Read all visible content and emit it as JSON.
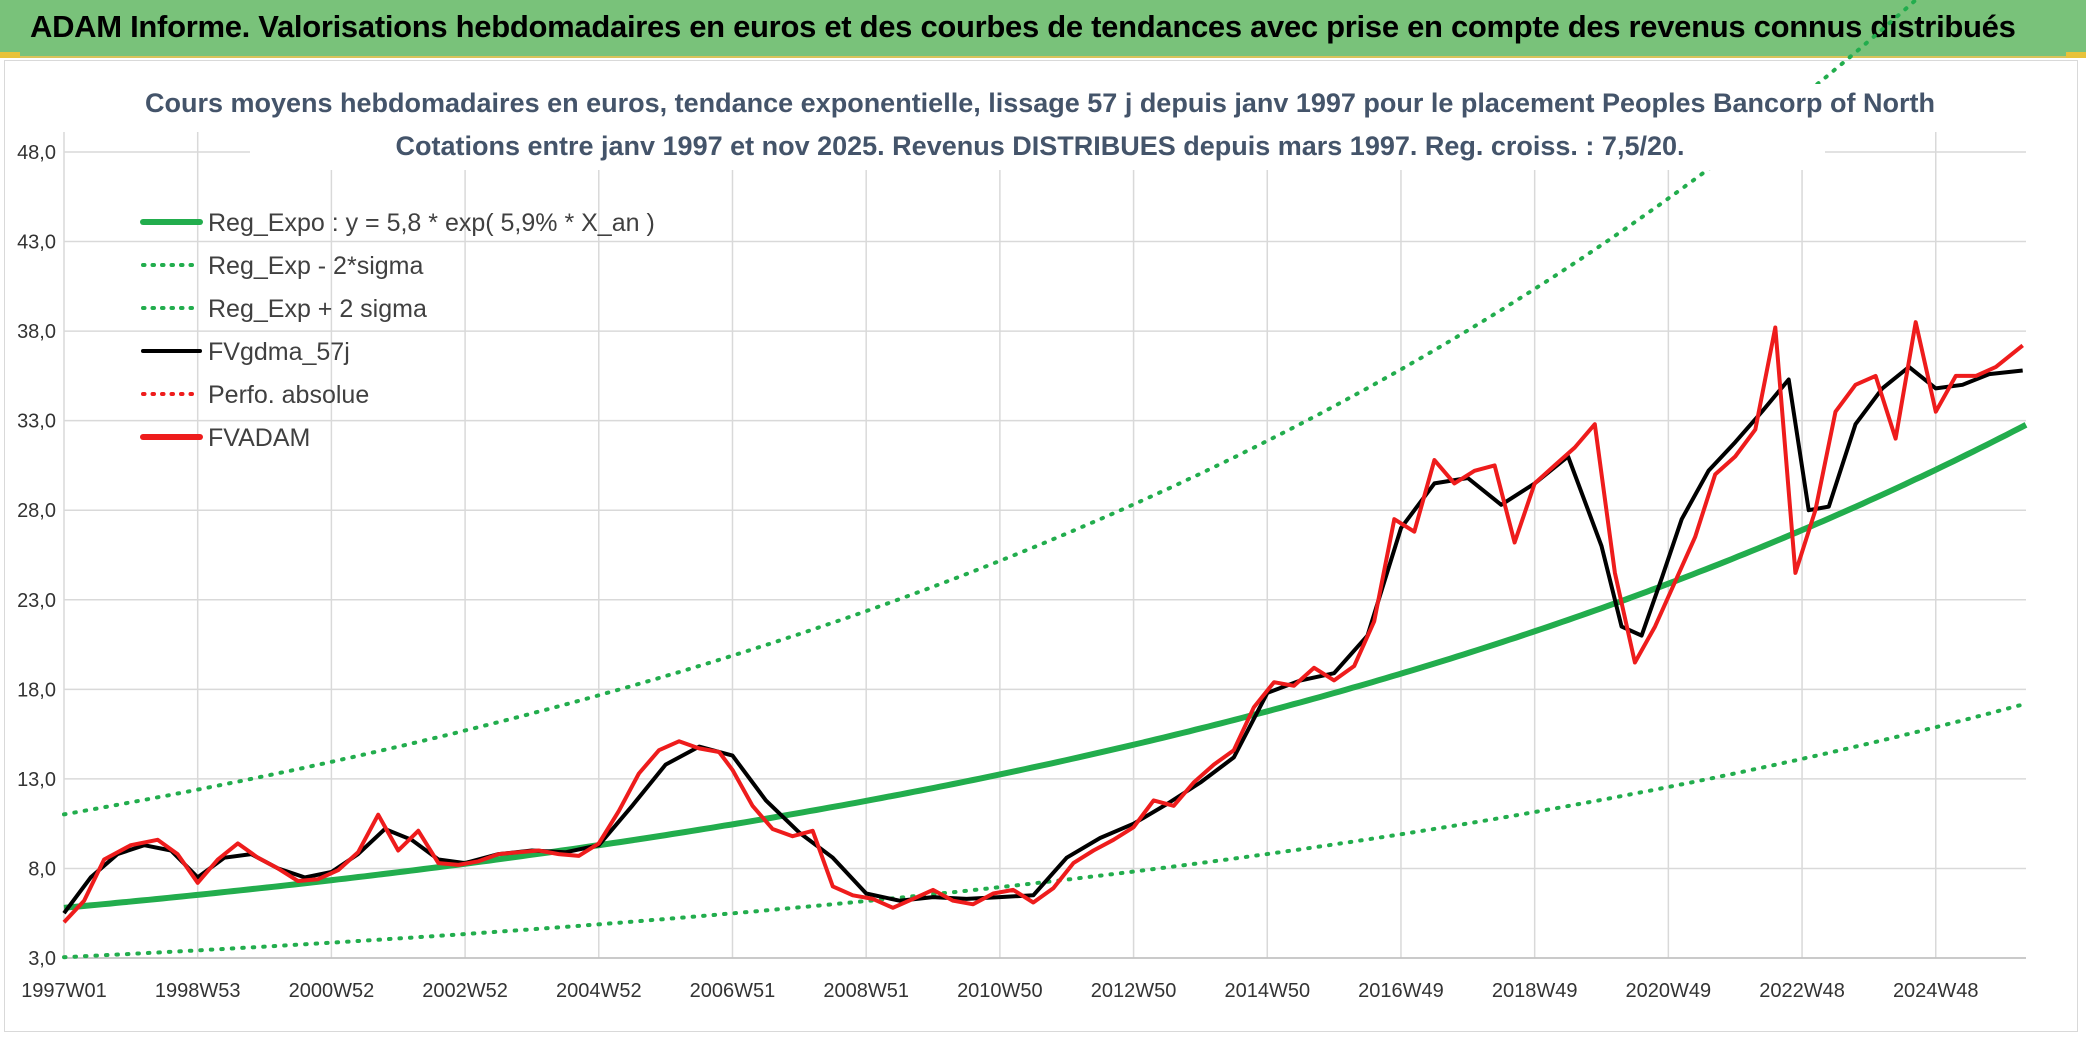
{
  "header": {
    "title": "ADAM Informe. Valorisations hebdomadaires en euros et des courbes de tendances avec prise en compte des revenus connus distribués"
  },
  "colors": {
    "header_bg": "#79c27a",
    "trend": "#22ad4d",
    "price": "#ee1c1c",
    "smooth": "#000000"
  },
  "chart_data": {
    "type": "line",
    "title_line1": "Cours moyens hebdomadaires en euros, tendance exponentielle, lissage 57 j depuis janv 1997 pour le placement Peoples Bancorp of North",
    "title_line2": "Cotations entre janv 1997 et nov 2025. Revenus DISTRIBUES depuis mars 1997. Reg. croiss. : 7,5/20.",
    "x_tick_labels": [
      "1997W01",
      "1998W53",
      "2000W52",
      "2002W52",
      "2004W52",
      "2006W51",
      "2008W51",
      "2010W50",
      "2012W50",
      "2014W50",
      "2016W49",
      "2018W49",
      "2020W49",
      "2022W48",
      "2024W48"
    ],
    "x_tick_years": [
      1997.0,
      1999.0,
      2001.0,
      2003.0,
      2005.0,
      2007.0,
      2009.0,
      2011.0,
      2013.0,
      2015.0,
      2017.0,
      2019.0,
      2021.0,
      2023.0,
      2025.0
    ],
    "xlim": [
      1997.0,
      2026.35
    ],
    "y_tick_labels": [
      "3,0",
      "8,0",
      "13,0",
      "18,0",
      "23,0",
      "28,0",
      "33,0",
      "38,0",
      "43,0",
      "48,0"
    ],
    "ylim": [
      3,
      48
    ],
    "legend": [
      {
        "label": "Reg_Expo : y = 5,8 * exp( 5,9% *  X_an )",
        "style": "solid-thick",
        "color": "#22ad4d"
      },
      {
        "label": "Reg_Exp - 2*sigma",
        "style": "dotted",
        "color": "#22ad4d"
      },
      {
        "label": "Reg_Exp + 2 sigma",
        "style": "dotted",
        "color": "#22ad4d"
      },
      {
        "label": "FVgdma_57j",
        "style": "solid",
        "color": "#000000"
      },
      {
        "label": "Perfo. absolue",
        "style": "dotted",
        "color": "#ee1c1c"
      },
      {
        "label": "FVADAM",
        "style": "solid-thick",
        "color": "#ee1c1c"
      }
    ],
    "trend": {
      "a": 5.8,
      "rate": 0.059,
      "lower_factor": 0.525,
      "upper_factor": 1.9
    },
    "series_price": {
      "name": "FVADAM",
      "x": [
        1997.0,
        1997.3,
        1997.6,
        1998.0,
        1998.4,
        1998.7,
        1999.0,
        1999.3,
        1999.6,
        1999.9,
        2000.2,
        2000.5,
        2000.8,
        2001.1,
        2001.4,
        2001.7,
        2002.0,
        2002.3,
        2002.6,
        2002.9,
        2003.2,
        2003.5,
        2003.8,
        2004.1,
        2004.4,
        2004.7,
        2005.0,
        2005.3,
        2005.6,
        2005.9,
        2006.2,
        2006.5,
        2006.8,
        2007.0,
        2007.3,
        2007.6,
        2007.9,
        2008.2,
        2008.5,
        2008.8,
        2009.1,
        2009.4,
        2009.7,
        2010.0,
        2010.3,
        2010.6,
        2010.9,
        2011.2,
        2011.5,
        2011.8,
        2012.1,
        2012.4,
        2012.7,
        2013.0,
        2013.3,
        2013.6,
        2013.9,
        2014.2,
        2014.5,
        2014.8,
        2015.1,
        2015.4,
        2015.7,
        2016.0,
        2016.3,
        2016.6,
        2016.9,
        2017.2,
        2017.5,
        2017.8,
        2018.1,
        2018.4,
        2018.7,
        2019.0,
        2019.3,
        2019.6,
        2019.9,
        2020.2,
        2020.5,
        2020.8,
        2021.1,
        2021.4,
        2021.7,
        2022.0,
        2022.3,
        2022.6,
        2022.9,
        2023.2,
        2023.5,
        2023.8,
        2024.1,
        2024.4,
        2024.7,
        2025.0,
        2025.3,
        2025.6,
        2025.9,
        2026.3
      ],
      "values": [
        5.0,
        6.2,
        8.5,
        9.3,
        9.6,
        8.8,
        7.2,
        8.5,
        9.4,
        8.6,
        8.0,
        7.3,
        7.4,
        7.9,
        8.9,
        11.0,
        9.0,
        10.1,
        8.3,
        8.2,
        8.4,
        8.8,
        8.9,
        9.0,
        8.8,
        8.7,
        9.4,
        11.2,
        13.3,
        14.6,
        15.1,
        14.7,
        14.5,
        13.5,
        11.5,
        10.2,
        9.8,
        10.1,
        7.0,
        6.5,
        6.3,
        5.8,
        6.3,
        6.8,
        6.2,
        6.0,
        6.6,
        6.8,
        6.1,
        6.9,
        8.3,
        9.0,
        9.6,
        10.3,
        11.8,
        11.5,
        12.8,
        13.8,
        14.6,
        17.0,
        18.4,
        18.2,
        19.2,
        18.5,
        19.3,
        21.8,
        27.5,
        26.8,
        30.8,
        29.5,
        30.2,
        30.5,
        26.2,
        29.5,
        30.5,
        31.5,
        32.8,
        24.5,
        19.5,
        21.5,
        24.0,
        26.5,
        30.0,
        31.0,
        32.5,
        38.2,
        24.5,
        28.0,
        33.5,
        35.0,
        35.5,
        32.0,
        38.5,
        33.5,
        35.5,
        35.5,
        36.0,
        37.2
      ]
    },
    "series_smooth": {
      "name": "FVgdma_57j",
      "x": [
        1997.0,
        1997.4,
        1997.8,
        1998.2,
        1998.6,
        1999.0,
        1999.4,
        1999.8,
        2000.2,
        2000.6,
        2001.0,
        2001.4,
        2001.8,
        2002.2,
        2002.6,
        2003.0,
        2003.5,
        2004.0,
        2004.5,
        2005.0,
        2005.5,
        2006.0,
        2006.5,
        2007.0,
        2007.5,
        2008.0,
        2008.5,
        2009.0,
        2009.5,
        2010.0,
        2010.5,
        2011.0,
        2011.5,
        2012.0,
        2012.5,
        2013.0,
        2013.5,
        2014.0,
        2014.5,
        2015.0,
        2015.5,
        2016.0,
        2016.5,
        2017.0,
        2017.5,
        2018.0,
        2018.5,
        2019.0,
        2019.5,
        2020.0,
        2020.3,
        2020.6,
        2020.9,
        2021.2,
        2021.6,
        2022.0,
        2022.4,
        2022.8,
        2023.1,
        2023.4,
        2023.8,
        2024.2,
        2024.6,
        2025.0,
        2025.4,
        2025.8,
        2026.3
      ],
      "values": [
        5.5,
        7.5,
        8.8,
        9.3,
        9.0,
        7.5,
        8.6,
        8.8,
        8.0,
        7.5,
        7.8,
        8.8,
        10.2,
        9.6,
        8.5,
        8.3,
        8.8,
        9.0,
        8.9,
        9.3,
        11.5,
        13.8,
        14.8,
        14.3,
        11.8,
        10.0,
        8.6,
        6.6,
        6.2,
        6.4,
        6.3,
        6.4,
        6.5,
        8.6,
        9.7,
        10.5,
        11.6,
        12.8,
        14.2,
        17.8,
        18.5,
        18.9,
        21.0,
        27.0,
        29.5,
        29.8,
        28.3,
        29.5,
        31.0,
        26.0,
        21.5,
        21.0,
        24.2,
        27.5,
        30.2,
        31.8,
        33.5,
        35.3,
        28.0,
        28.2,
        32.8,
        34.8,
        36.0,
        34.8,
        35.0,
        35.6,
        35.8
      ]
    }
  }
}
